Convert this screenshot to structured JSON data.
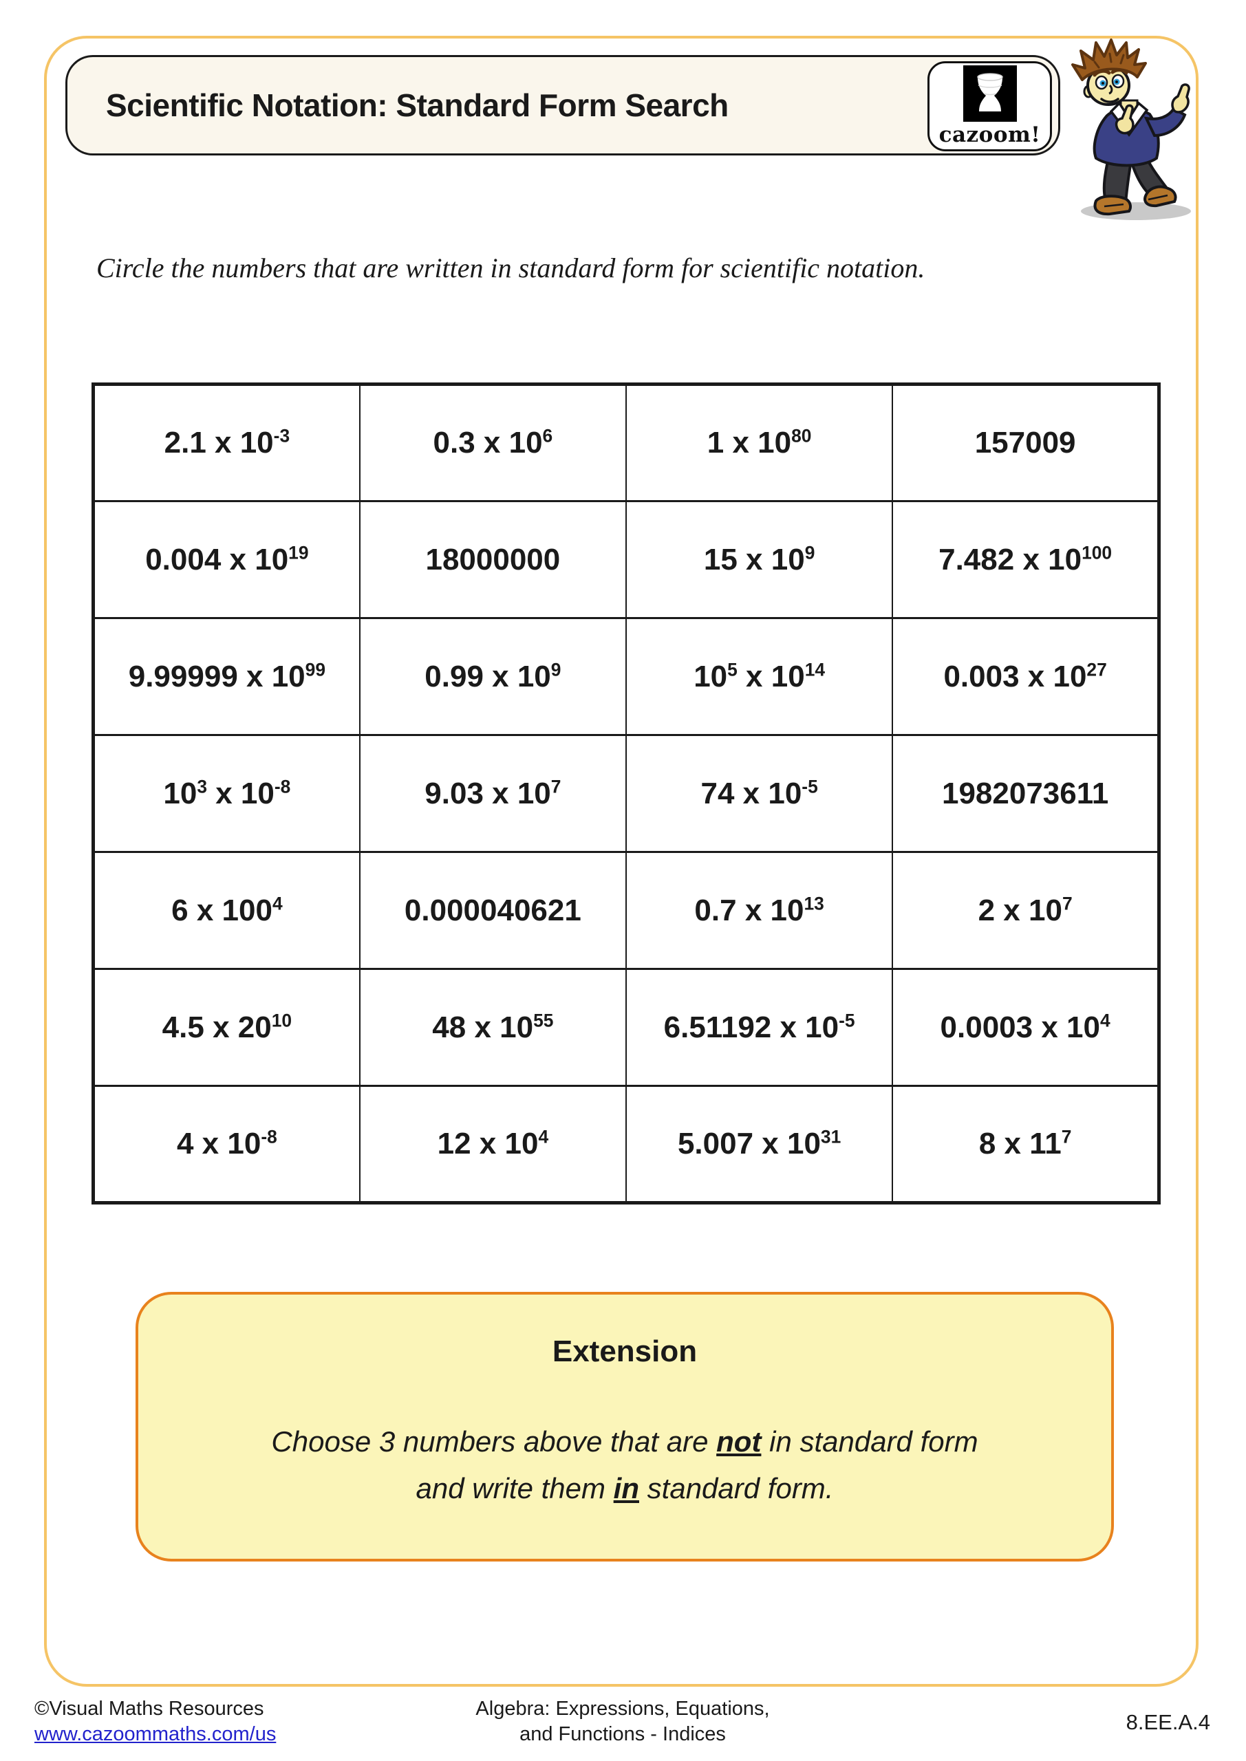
{
  "header": {
    "title": "Scientific Notation: Standard Form Search",
    "logo": {
      "brand": "cazoom!",
      "icon": "djembe-drum-icon"
    },
    "mascot": "cartoon-boy-thumbs-up"
  },
  "instruction": "Circle the numbers that are written in standard form for scientific notation.",
  "grid": {
    "columns": 4,
    "rows": [
      [
        "2.1 x 10{-3}",
        "0.3 x 10{6}",
        "1 x 10{80}",
        "157009"
      ],
      [
        "0.004 x 10{19}",
        "18000000",
        "15 x 10{9}",
        "7.482 x 10{100}"
      ],
      [
        "9.99999 x 10{99}",
        "0.99 x 10{9}",
        "10{5} x 10{14}",
        "0.003 x 10{27}"
      ],
      [
        "10{3} x 10{-8}",
        "9.03 x 10{7}",
        "74 x 10{-5}",
        "1982073611"
      ],
      [
        "6 x 100{4}",
        "0.000040621",
        "0.7 x 10{13}",
        "2 x 10{7}"
      ],
      [
        "4.5 x 20{10}",
        "48 x 10{55}",
        "6.51192 x 10{-5}",
        "0.0003 x 10{4}"
      ],
      [
        "4 x 10{-8}",
        "12 x 10{4}",
        "5.007 x 10{31}",
        "8 x 11{7}"
      ]
    ]
  },
  "extension": {
    "title": "Extension",
    "body_lines": [
      [
        {
          "t": "Choose 3 numbers above that are "
        },
        {
          "b": "not"
        },
        {
          "t": " in standard form"
        }
      ],
      [
        {
          "t": "and write them "
        },
        {
          "b": "in"
        },
        {
          "t": " standard form."
        }
      ]
    ]
  },
  "footer": {
    "copyright": "©Visual Maths Resources",
    "url": "www.cazoommaths.com/us",
    "center_line1": "Algebra: Expressions, Equations,",
    "center_line2": "and Functions - Indices",
    "code": "8.EE.A.4"
  },
  "colors": {
    "frame_border": "#f5c466",
    "title_box_bg": "#faf6ec",
    "extension_bg": "#fbf5b9",
    "extension_border": "#e8821d",
    "link_blue": "#2222cc",
    "ink": "#1a1a1a"
  }
}
